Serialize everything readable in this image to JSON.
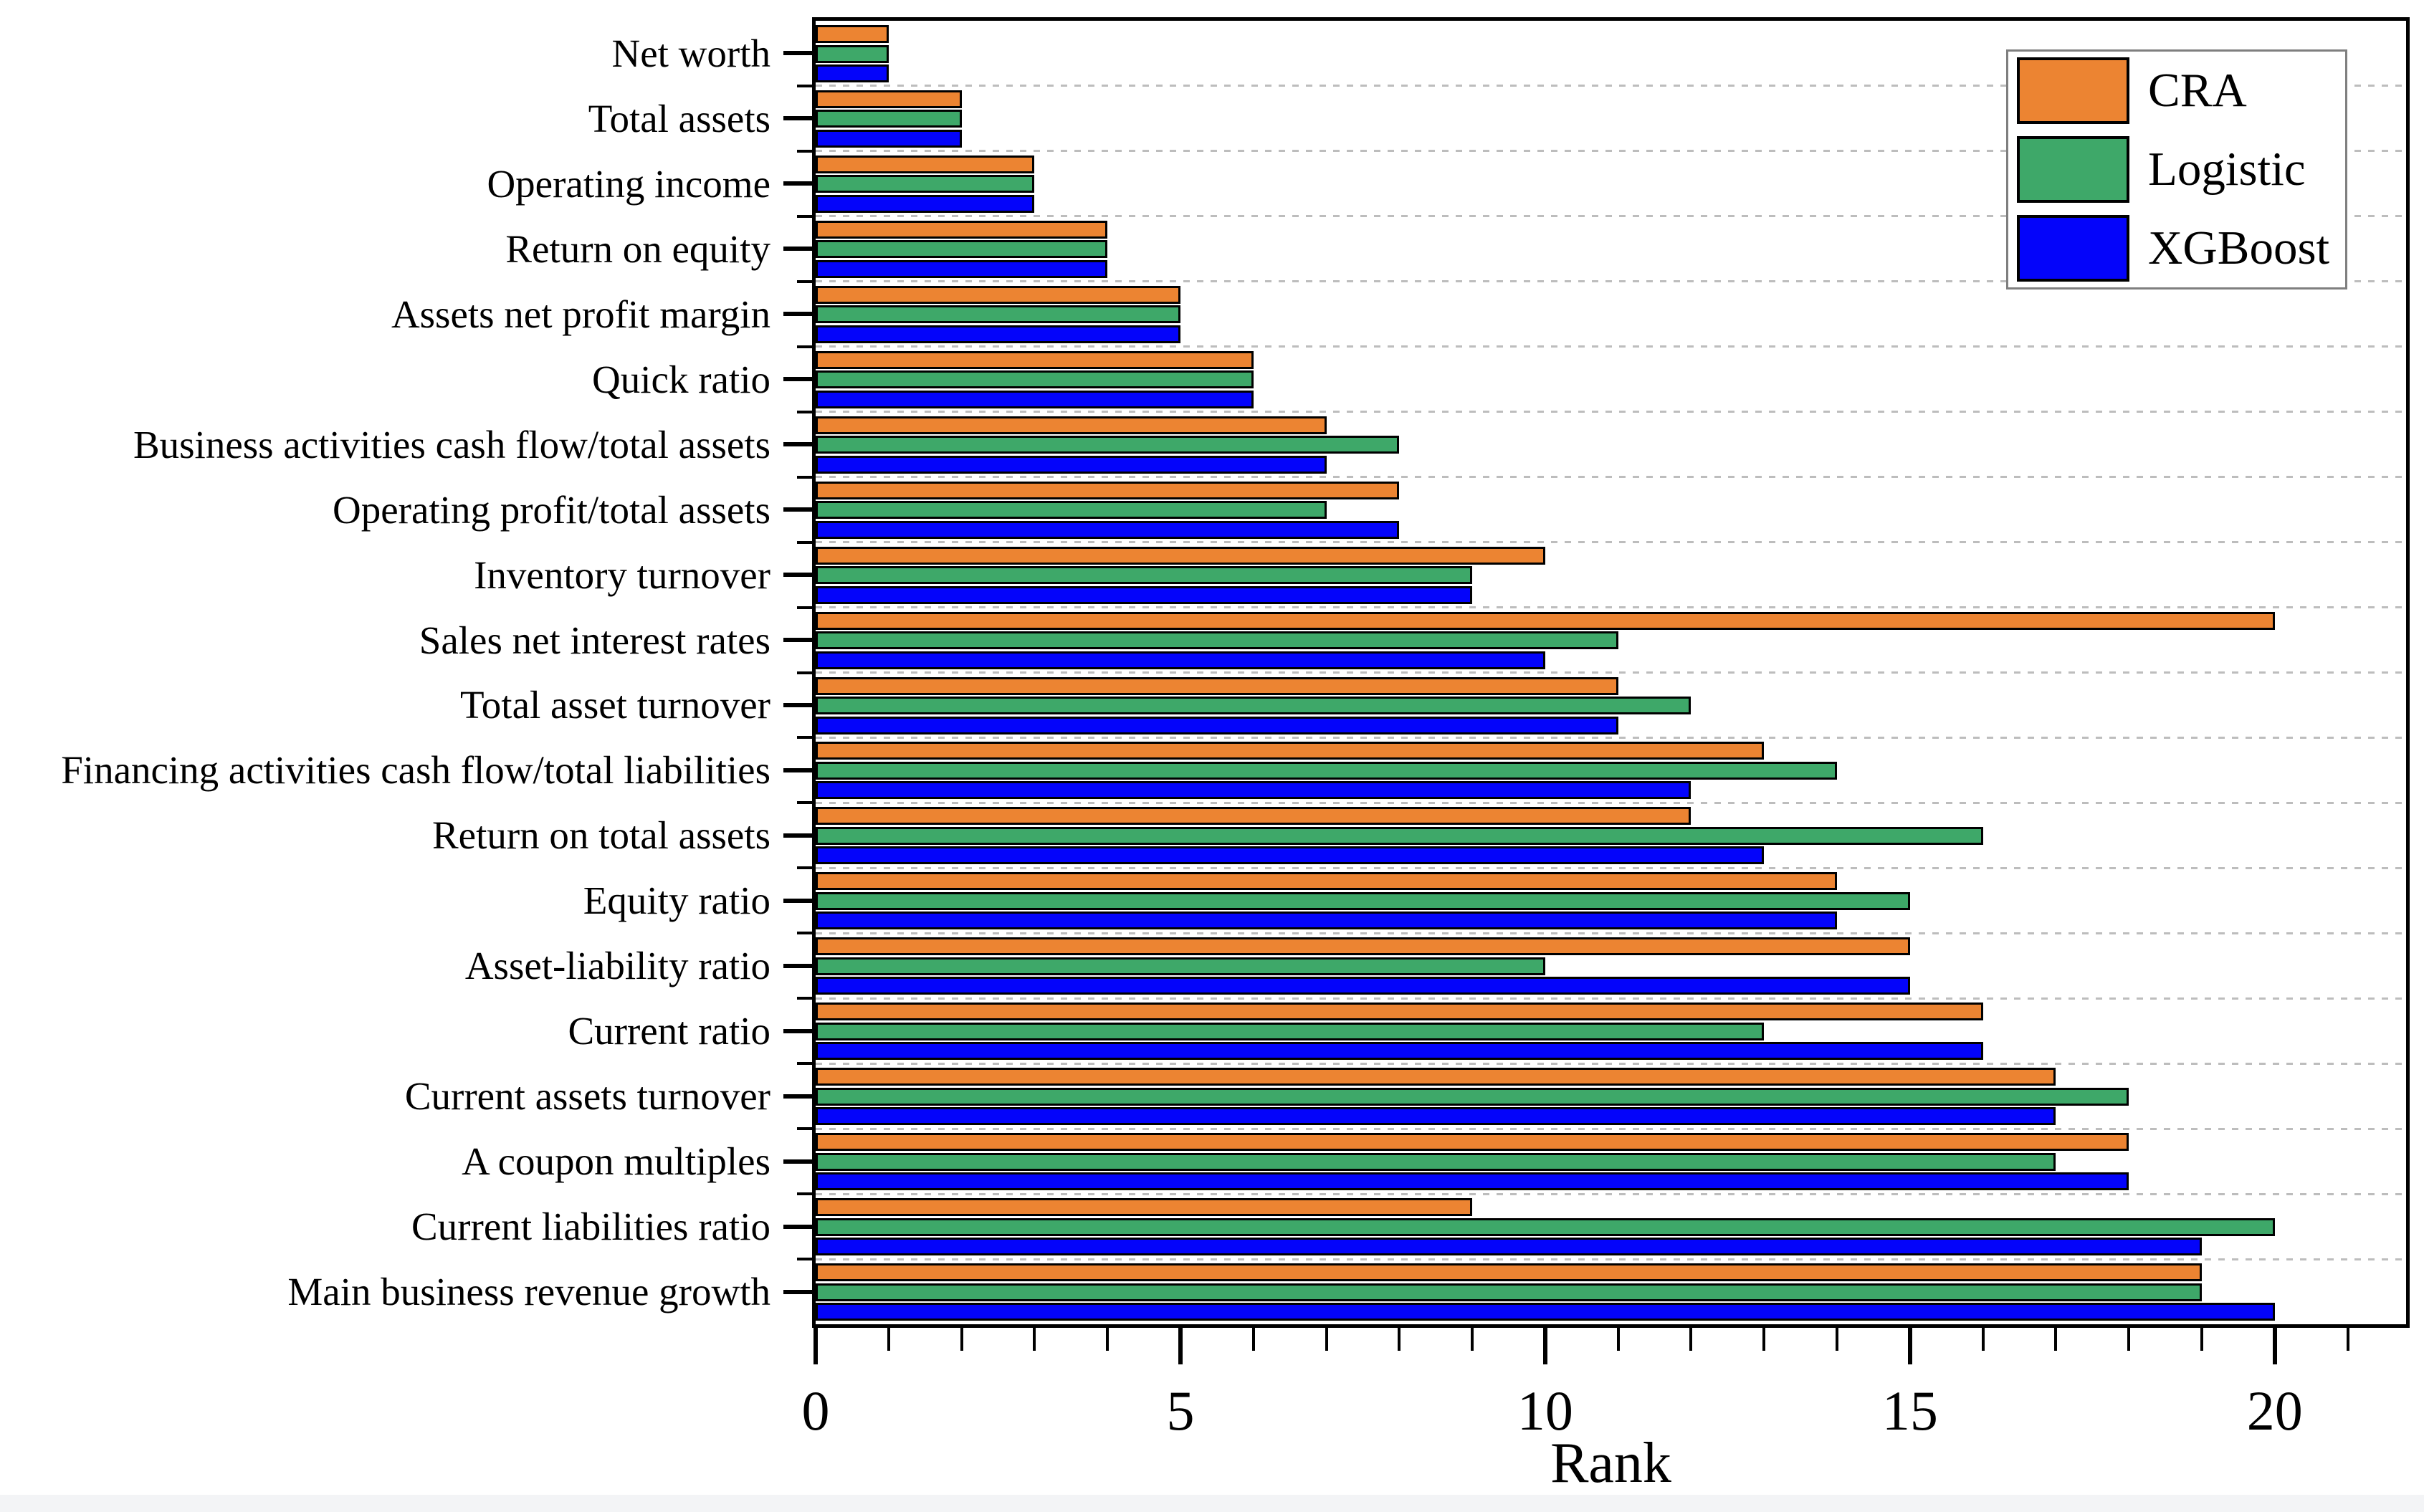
{
  "chart_data": {
    "type": "bar",
    "orientation": "horizontal",
    "xlabel": "Rank",
    "x_tick_labels": [
      "0",
      "5",
      "10",
      "15",
      "20"
    ],
    "x_tick_values": [
      0,
      5,
      10,
      15,
      20
    ],
    "x_minor_tick_step": 1,
    "xlim": [
      0,
      21.8
    ],
    "grid": "horizontal dashed lines at category boundaries",
    "legend_position": "top-right",
    "categories": [
      "Net worth",
      "Total assets",
      "Operating income",
      "Return on equity",
      "Assets net profit margin",
      "Quick ratio",
      "Business activities cash flow/total assets",
      "Operating profit/total assets",
      "Inventory turnover",
      "Sales net interest rates",
      "Total asset turnover",
      "Financing activities cash flow/total liabilities",
      "Return on total assets",
      "Equity ratio",
      "Asset-liability ratio",
      "Current ratio",
      "Current assets turnover",
      "A coupon multiples",
      "Current liabilities ratio",
      "Main business revenue growth"
    ],
    "series": [
      {
        "name": "CRA",
        "color": "#EC8432",
        "values": [
          1,
          2,
          3,
          4,
          5,
          6,
          7,
          8,
          10,
          20,
          11,
          13,
          12,
          14,
          15,
          16,
          17,
          18,
          9,
          19
        ]
      },
      {
        "name": "Logistic",
        "color": "#3EA869",
        "values": [
          1,
          2,
          3,
          4,
          5,
          6,
          8,
          7,
          9,
          11,
          12,
          14,
          16,
          15,
          10,
          13,
          18,
          17,
          20,
          19
        ]
      },
      {
        "name": "XGBoost",
        "color": "#0404FA",
        "values": [
          1,
          2,
          3,
          4,
          5,
          6,
          7,
          8,
          9,
          10,
          11,
          12,
          13,
          14,
          15,
          16,
          17,
          18,
          19,
          20
        ]
      }
    ]
  },
  "legend": {
    "entries": [
      {
        "label": "CRA",
        "color": "#EC8432"
      },
      {
        "label": "Logistic",
        "color": "#3EA869"
      },
      {
        "label": "XGBoost",
        "color": "#0404FA"
      }
    ]
  },
  "colors": {
    "bar_border": "#000000",
    "frame": "#000000",
    "gridline": "#BDBDBD",
    "legend_border": "#7F7F7F",
    "background": "#FFFFFF",
    "footer_strip": "#F3F4F6"
  }
}
